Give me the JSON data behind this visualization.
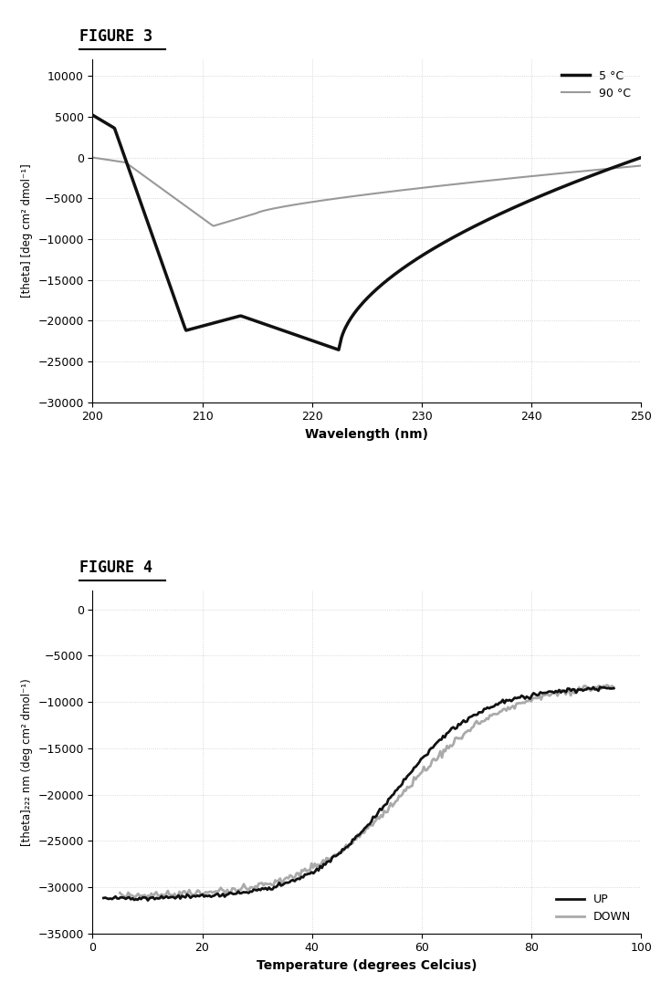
{
  "fig3": {
    "title": "FIGURE 3",
    "xlabel": "Wavelength (nm)",
    "ylabel": "[theta] [deg cm² dmol⁻¹]",
    "xlim": [
      200,
      250
    ],
    "ylim": [
      -30000,
      12000
    ],
    "yticks": [
      -30000,
      -25000,
      -20000,
      -15000,
      -10000,
      -5000,
      0,
      5000,
      10000
    ],
    "xticks": [
      200,
      210,
      220,
      230,
      240,
      250
    ],
    "legend_5C": "5 °C",
    "legend_90C": "90 °C",
    "color_5C": "#111111",
    "color_90C": "#999999",
    "lw_5C": 2.5,
    "lw_90C": 1.5
  },
  "fig4": {
    "title": "FIGURE 4",
    "xlabel": "Temperature (degrees Celcius)",
    "ylabel": "[theta]₂₂₂ nm (deg cm² dmol⁻¹)",
    "xlim": [
      0,
      100
    ],
    "ylim": [
      -35000,
      2000
    ],
    "yticks": [
      -35000,
      -30000,
      -25000,
      -20000,
      -15000,
      -10000,
      -5000,
      0
    ],
    "xticks": [
      0,
      20,
      40,
      60,
      80,
      100
    ],
    "legend_up": "UP",
    "legend_down": "DOWN",
    "color_up": "#111111",
    "color_down": "#aaaaaa",
    "lw_up": 2.0,
    "lw_down": 2.0
  },
  "background_color": "#ffffff",
  "grid_color": "#cccccc"
}
